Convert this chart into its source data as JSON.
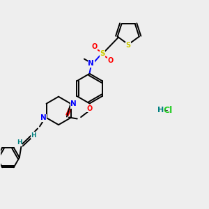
{
  "bg_color": "#eeeeee",
  "C": "#000000",
  "N": "#0000ff",
  "O": "#ff0000",
  "S": "#cccc00",
  "H": "#008080",
  "Cl": "#22cc22"
}
